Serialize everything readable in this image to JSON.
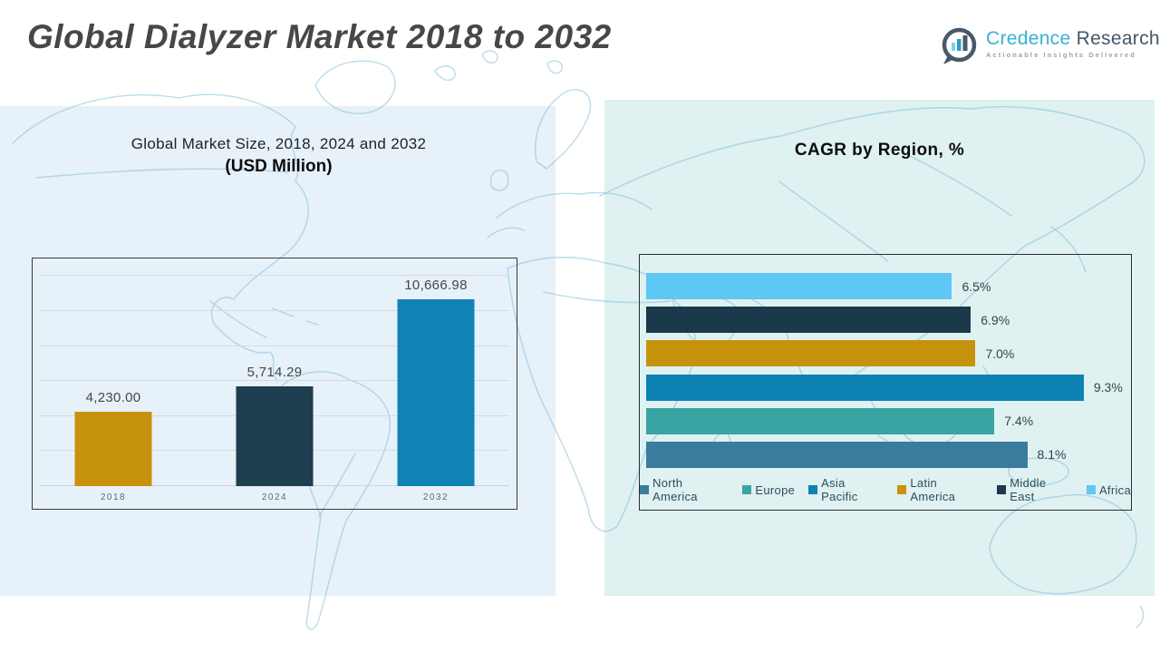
{
  "header": {
    "title": "Global Dialyzer Market 2018 to 2032",
    "logo": {
      "brand_primary": "Credence",
      "brand_secondary": "Research",
      "tagline": "Actionable Insights Delivered",
      "icon": "bar-chart-speech-bubble-icon",
      "colors": {
        "primary": "#38b2d2",
        "secondary": "#43586a",
        "tagline": "#94a4ae"
      }
    }
  },
  "left_chart": {
    "title_line1": "Global Market Size, 2018, 2024 and 2032",
    "title_line2": "(USD Million)"
  },
  "right_chart": {
    "title": "CAGR by Region, %"
  },
  "colors": {
    "panel_left_bg": "#e7f1f9",
    "panel_right_bg": "#dff1f1",
    "map_line": "#7abad6",
    "gold": "#c7930d",
    "dark_slate": "#1e3d4e",
    "blue": "#1182b4",
    "teal": "#39a5a2",
    "steel_blue": "#3a7c9d",
    "light_blue": "#5ec7f3"
  },
  "chart_data": [
    {
      "type": "bar",
      "orientation": "vertical",
      "title": "Global Market Size, 2018, 2024 and 2032 (USD Million)",
      "categories": [
        "2018",
        "2024",
        "2032"
      ],
      "values": [
        4230.0,
        5714.29,
        10666.98
      ],
      "value_labels": [
        "4,230.00",
        "5,714.29",
        "10,666.98"
      ],
      "bar_colors": [
        "#c7930d",
        "#1e3d4e",
        "#1182b4"
      ],
      "xlabel": "",
      "ylabel": "",
      "ylim": [
        0,
        12000
      ],
      "gridline_step": 2000,
      "grid": true,
      "legend_position": "none"
    },
    {
      "type": "bar",
      "orientation": "horizontal",
      "title": "CAGR by Region, %",
      "categories": [
        "Africa",
        "Middle East",
        "Latin America",
        "Asia Pacific",
        "Europe",
        "North America"
      ],
      "values": [
        6.5,
        6.9,
        7.0,
        9.3,
        7.4,
        8.1
      ],
      "value_labels": [
        "6.5%",
        "6.9%",
        "7.0%",
        "9.3%",
        "7.4%",
        "8.1%"
      ],
      "bar_colors": [
        "#5ec7f3",
        "#1b394b",
        "#c7930d",
        "#0d82b3",
        "#39a5a2",
        "#3a7c9d"
      ],
      "xlim": [
        0,
        10.15
      ],
      "grid": false,
      "legend_position": "bottom",
      "legend": [
        {
          "label": "North America",
          "color": "#3a7c9d"
        },
        {
          "label": "Europe",
          "color": "#39a5a2"
        },
        {
          "label": "Asia Pacific",
          "color": "#0d82b3"
        },
        {
          "label": "Latin America",
          "color": "#c7930d"
        },
        {
          "label": "Middle East",
          "color": "#1b394b"
        },
        {
          "label": "Africa",
          "color": "#5ec7f3"
        }
      ]
    }
  ]
}
